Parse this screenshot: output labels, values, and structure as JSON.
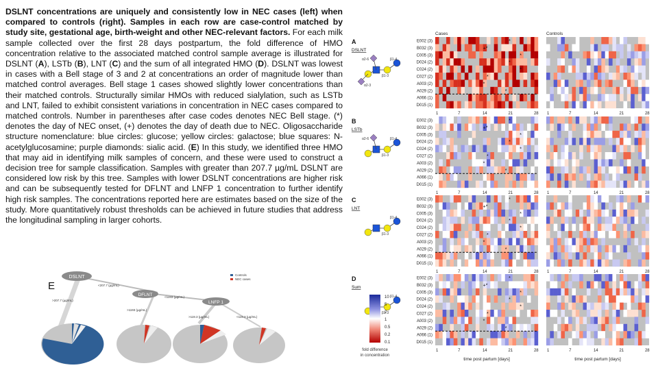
{
  "caption": {
    "lead": "DSLNT concentrations are uniquely and consistently low in NEC cases (left) when compared to controls (right). Samples in each row are case-control matched by study site, gestational age, birth-weight and other NEC-relevant factors.",
    "body_parts": [
      " For each milk sample collected over the first 28 days postpartum, the fold difference of HMO concentration relative to the associated matched control sample average is illustrated for DSLNT (",
      "A",
      "), LSTb (",
      "B",
      "), LNT (",
      "C",
      ") and the sum of all integrated HMO (",
      "D",
      "). DSLNT was lowest in cases with a Bell stage of 3 and 2 at concentrations an order of magnitude lower than matched control averages. Bell stage 1 cases showed slightly lower concentrations than their matched controls. Structurally similar HMOs with reduced sialylation, such as LSTb and LNT, failed to exhibit consistent variations in concentration in NEC cases compared to matched controls. Number in parentheses after case codes denotes NEC Bell stage. (*) denotes the day of NEC onset, (+) denotes the day of death due to NEC. Oligosaccharide structure nomenclature: blue circles: glucose; yellow circles: galactose; blue squares: N-acetylglucosamine; purple diamonds: sialic acid. (",
      "E",
      ") In this study, we identified three HMO that may aid in identifying milk samples of concern, and these were used to construct a decision tree for sample classification. Samples with greater than 207.7 µg/mL DSLNT are considered low risk by this tree. Samples with lower DSLNT concentrations are higher risk and can be subsequently tested for DFLNT and LNFP 1 concentration to further identify high risk samples. The concentrations reported here are estimates based on the size of the study. More quantitatively robust thresholds can be achieved in future studies that address the longitudinal sampling in larger cohorts."
    ]
  },
  "tree": {
    "panel_letter": "E",
    "nodes": [
      "DSLNT",
      "DFLNT",
      "LNFP 1"
    ],
    "edges": [
      "<207.7 (µg/mL)",
      "<1193 (µg/mL)",
      ">207.7 (µg/mL)",
      ">1193 (µg/mL)",
      ">119.3 (µg/mL)",
      "<119.3 (µg/mL)"
    ],
    "legend": [
      "Controls",
      "NEC cases"
    ],
    "colors": {
      "controls": "#2f5f95",
      "cases": "#d03524",
      "pie": "#c6c6c6"
    }
  },
  "heatmap": {
    "col_headers": [
      "Cases",
      "Controls"
    ],
    "panels": [
      {
        "letter": "A",
        "name": "DSLNT"
      },
      {
        "letter": "B",
        "name": "LSTb"
      },
      {
        "letter": "C",
        "name": "LNT"
      },
      {
        "letter": "D",
        "name": "Sum"
      }
    ],
    "rows": [
      "E002 (3)",
      "B032 (3)",
      "C005 (3)",
      "D024 (2)",
      "C024 (2)",
      "C027 (2)",
      "A003 (2)",
      "A029 (2)",
      "A066 (1)",
      "D015 (1)"
    ],
    "x_ticks": [
      "1",
      "7",
      "14",
      "21",
      "28"
    ],
    "x_label": "time post partum [days]",
    "scale_ticks": [
      "10",
      "5",
      "2",
      "1",
      "0.5",
      "0.2",
      "0.1"
    ],
    "scale_label": "fold difference\nin concentration",
    "structure_labels": [
      "α2-6",
      "β1-4",
      "β1-3",
      "α2-3"
    ]
  }
}
